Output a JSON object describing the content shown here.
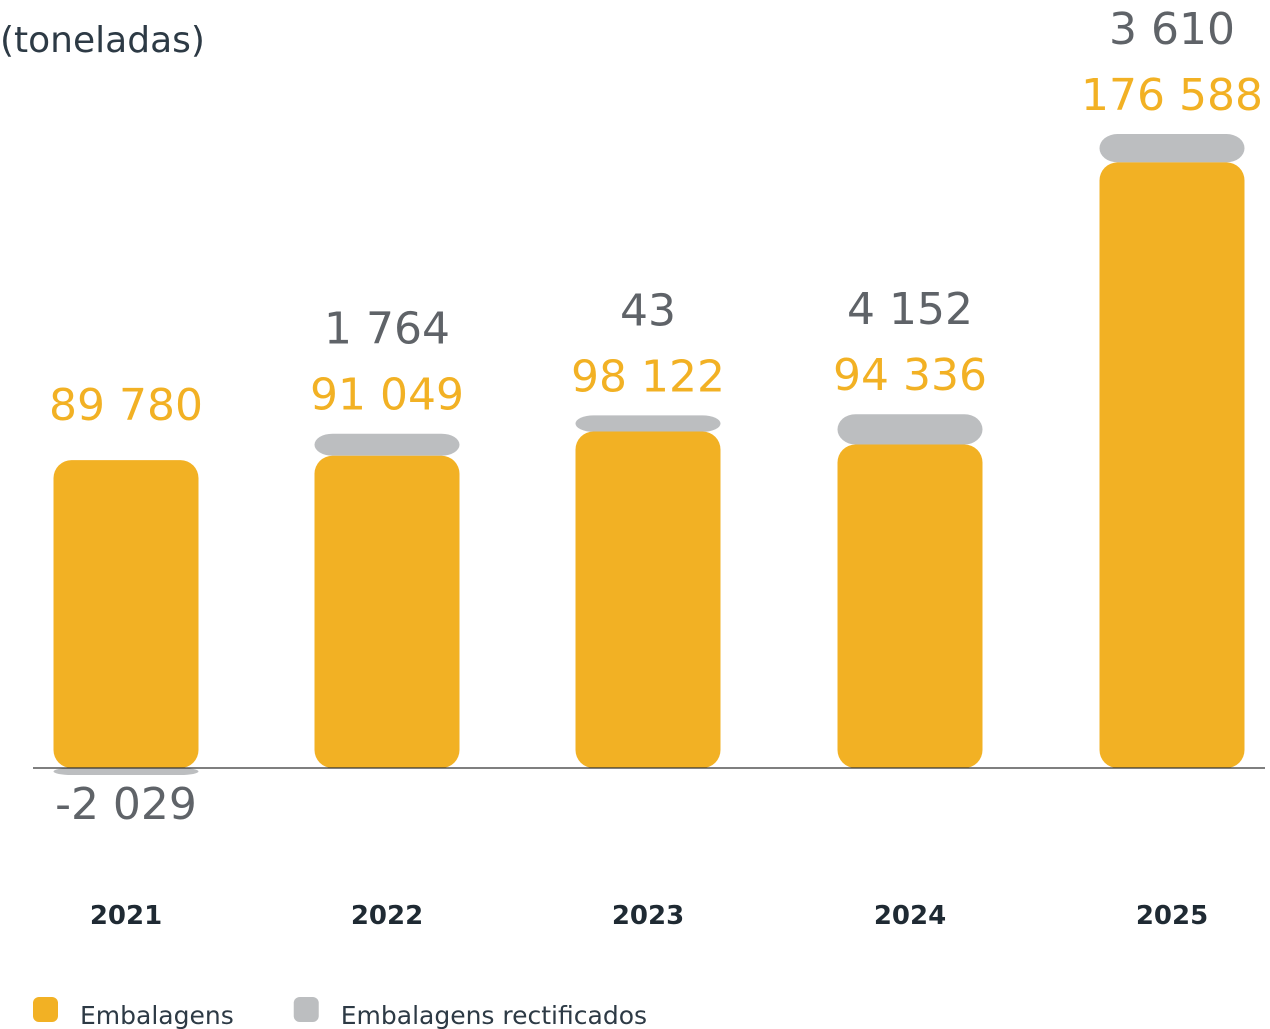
{
  "chart_data": {
    "type": "bar",
    "stacked": true,
    "title": "(toneladas)",
    "categories": [
      "2021",
      "2022",
      "2023",
      "2024",
      "2025"
    ],
    "series": [
      {
        "name": "Embalagens",
        "color": "#f2b124",
        "values": [
          89780,
          91049,
          98122,
          94336,
          176588
        ],
        "value_labels": [
          "89 780",
          "91 049",
          "98 122",
          "94 336",
          "176 588"
        ]
      },
      {
        "name": "Embalagens rectificados",
        "color": "#bcbec0",
        "values": [
          -2029,
          1764,
          43,
          4152,
          3610
        ],
        "value_labels": [
          "-2 029",
          "1 764",
          "43",
          "4 152",
          "3 610"
        ]
      }
    ]
  }
}
